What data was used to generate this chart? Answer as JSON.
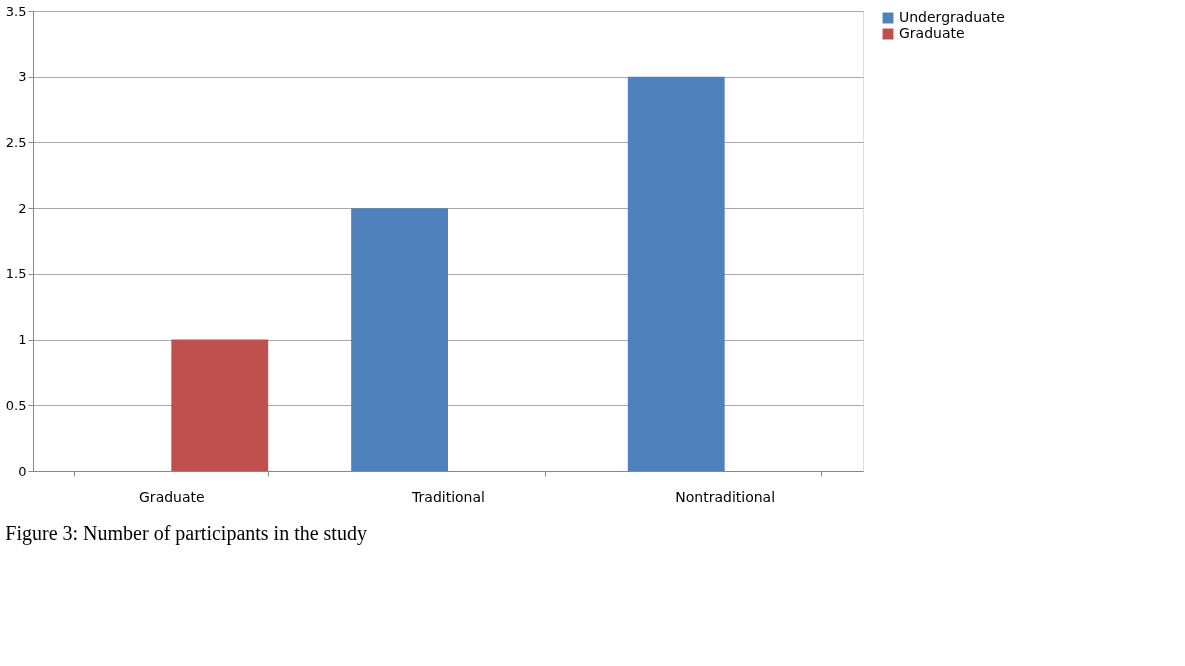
{
  "chart_data": {
    "type": "bar",
    "categories": [
      "Graduate",
      "Traditional",
      "Nontraditional"
    ],
    "series": [
      {
        "name": "Undergraduate",
        "color": "#4f81bd",
        "values": [
          null,
          2,
          3
        ]
      },
      {
        "name": "Graduate",
        "color": "#c0504d",
        "values": [
          1,
          null,
          null
        ]
      }
    ],
    "ylim": [
      0,
      3.5
    ],
    "yticks": [
      0,
      0.5,
      1,
      1.5,
      2,
      2.5,
      3,
      3.5
    ],
    "grid": "y",
    "legend": "right",
    "annotations": [
      "Figure 3: Number of participants in the study"
    ]
  }
}
